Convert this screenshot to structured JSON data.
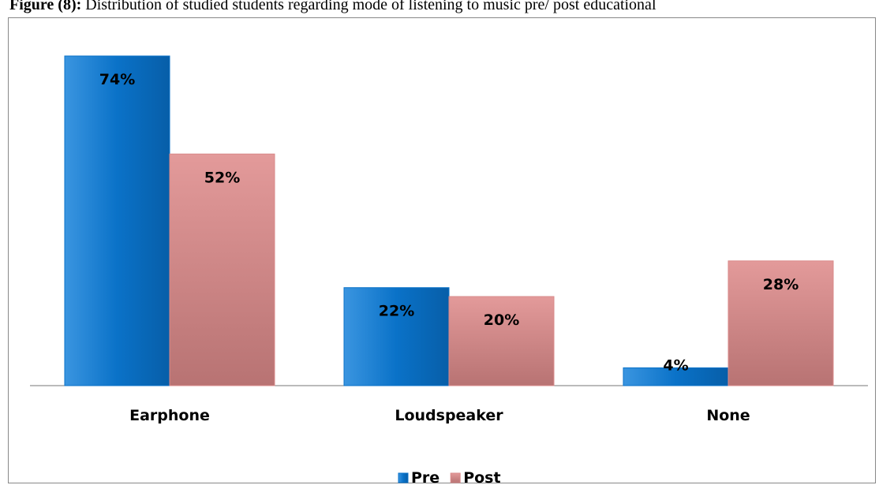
{
  "chart_data": {
    "type": "bar",
    "label": "Figure (8):",
    "title": "Distribution of studied students regarding mode of listening to music pre/ post educational",
    "categories": [
      "Earphone",
      "Loudspeaker",
      "None"
    ],
    "series": [
      {
        "name": "Pre",
        "color": "#0a72c8",
        "values": [
          74,
          22,
          4
        ],
        "value_labels": [
          "74%",
          "22%",
          "4%"
        ]
      },
      {
        "name": "Post",
        "color": "#d98a8a",
        "values": [
          52,
          20,
          28
        ],
        "value_labels": [
          "52%",
          "20%",
          "28%"
        ]
      }
    ],
    "legend": "bottom"
  }
}
